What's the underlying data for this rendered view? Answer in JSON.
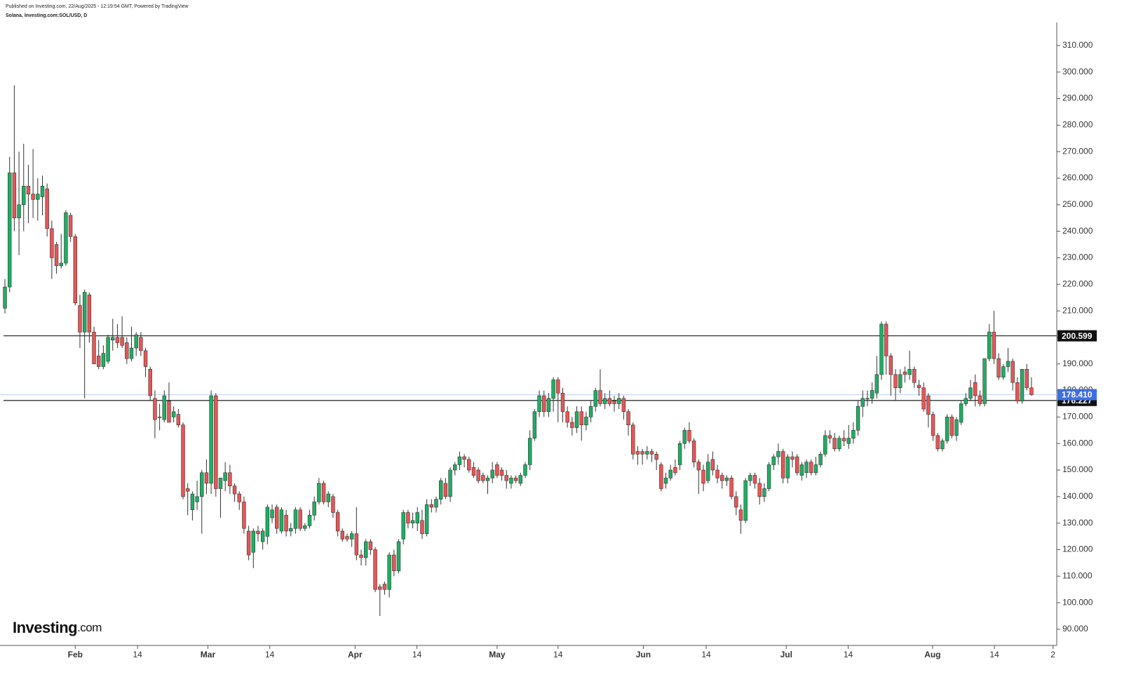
{
  "header": {
    "published": "Published on Investing.com, 22/Aug/2025 - 12:19:54 GMT, Powered by TradingView",
    "symbol": "Solana, Investing.com:SOL/USD, D"
  },
  "logo": {
    "main": "Investing",
    "suffix": ".com"
  },
  "chart_data": {
    "type": "candlestick",
    "up_color": "#1fae63",
    "down_color": "#e85656",
    "xlim": [
      -1.05,
      224.4
    ],
    "ylim": [
      83.9,
      318.7
    ],
    "xticks": [
      {
        "value": 15.0,
        "label": "Feb"
      },
      {
        "value": 28.3,
        "label": "14"
      },
      {
        "value": 43.3,
        "label": "Mar"
      },
      {
        "value": 56.5,
        "label": "14"
      },
      {
        "value": 74.7,
        "label": "Apr"
      },
      {
        "value": 87.9,
        "label": "14"
      },
      {
        "value": 105.0,
        "label": "May"
      },
      {
        "value": 118.0,
        "label": "14"
      },
      {
        "value": 136.2,
        "label": "Jun"
      },
      {
        "value": 149.6,
        "label": "14"
      },
      {
        "value": 166.7,
        "label": "Jul"
      },
      {
        "value": 179.9,
        "label": "14"
      },
      {
        "value": 197.9,
        "label": "Aug"
      },
      {
        "value": 211.1,
        "label": "14"
      },
      {
        "value": 223.6,
        "label": "2"
      }
    ],
    "yticks": [
      {
        "value": 90,
        "label": "90.000"
      },
      {
        "value": 100,
        "label": "100.000"
      },
      {
        "value": 110,
        "label": "110.000"
      },
      {
        "value": 120,
        "label": "120.000"
      },
      {
        "value": 130,
        "label": "130.000"
      },
      {
        "value": 140,
        "label": "140.000"
      },
      {
        "value": 150,
        "label": "150.000"
      },
      {
        "value": 160,
        "label": "160.000"
      },
      {
        "value": 170,
        "label": "170.000"
      },
      {
        "value": 180,
        "label": "180.000"
      },
      {
        "value": 190,
        "label": "190.000"
      },
      {
        "value": 200,
        "label": "200.000"
      },
      {
        "value": 210,
        "label": "210.000"
      },
      {
        "value": 220,
        "label": "220.000"
      },
      {
        "value": 230,
        "label": "230.000"
      },
      {
        "value": 240,
        "label": "240.000"
      },
      {
        "value": 250,
        "label": "250.000"
      },
      {
        "value": 260,
        "label": "260.000"
      },
      {
        "value": 270,
        "label": "270.000"
      },
      {
        "value": 280,
        "label": "280.000"
      },
      {
        "value": 290,
        "label": "290.000"
      },
      {
        "value": 300,
        "label": "300.000"
      },
      {
        "value": 310,
        "label": "310.000"
      }
    ],
    "levels": [
      {
        "value": 200.599,
        "label": "200.599"
      },
      {
        "value": 176.227,
        "label": "176.227"
      }
    ],
    "last": {
      "value": 178.41,
      "label": "178.410",
      "color": "#3d6fe0"
    },
    "ohlc": [
      [
        211,
        222,
        209,
        219
      ],
      [
        219,
        268,
        217,
        262
      ],
      [
        262,
        295,
        240,
        245
      ],
      [
        245,
        270,
        231,
        250
      ],
      [
        250,
        273,
        240,
        257
      ],
      [
        257,
        265,
        243,
        254
      ],
      [
        254,
        271,
        245,
        252
      ],
      [
        252,
        260,
        244,
        254
      ],
      [
        253,
        261,
        246,
        257
      ],
      [
        256,
        258,
        238,
        241
      ],
      [
        241,
        244,
        222,
        230
      ],
      [
        235,
        236,
        224,
        227
      ],
      [
        227,
        239,
        226,
        228
      ],
      [
        228,
        248,
        227,
        247
      ],
      [
        246,
        247,
        236,
        238
      ],
      [
        238,
        239,
        212,
        213
      ],
      [
        212,
        216,
        196,
        202
      ],
      [
        202,
        218,
        177,
        217
      ],
      [
        216,
        217,
        198,
        202
      ],
      [
        202,
        204,
        190,
        190
      ],
      [
        193,
        199,
        188,
        189
      ],
      [
        189,
        197,
        188,
        194
      ],
      [
        191,
        201,
        190,
        200
      ],
      [
        199,
        207,
        195,
        200
      ],
      [
        200,
        205,
        196,
        198
      ],
      [
        200,
        208,
        196,
        197
      ],
      [
        198,
        200,
        190,
        192
      ],
      [
        192,
        204,
        191,
        196
      ],
      [
        196,
        202,
        193,
        201
      ],
      [
        200,
        202,
        193,
        195
      ],
      [
        195,
        196,
        185,
        189
      ],
      [
        188,
        189,
        176,
        178
      ],
      [
        177,
        180,
        162,
        169
      ],
      [
        170,
        175,
        165,
        170
      ],
      [
        169,
        180,
        168,
        178
      ],
      [
        176,
        183,
        168,
        168
      ],
      [
        170,
        174,
        168,
        172
      ],
      [
        171,
        173,
        166,
        167
      ],
      [
        167,
        168,
        139,
        140
      ],
      [
        143,
        145,
        133,
        142
      ],
      [
        135,
        142,
        131,
        141
      ],
      [
        138,
        146,
        135,
        140
      ],
      [
        140,
        150,
        126,
        149
      ],
      [
        149,
        154,
        141,
        145
      ],
      [
        145,
        180,
        141,
        178
      ],
      [
        178,
        179,
        140,
        143
      ],
      [
        143,
        147,
        132,
        147
      ],
      [
        146,
        153,
        142,
        149
      ],
      [
        149,
        152,
        141,
        144
      ],
      [
        144,
        145,
        138,
        141
      ],
      [
        141,
        142,
        135,
        138
      ],
      [
        138,
        140,
        126,
        128
      ],
      [
        127,
        129,
        116,
        118
      ],
      [
        119,
        128,
        113,
        127
      ],
      [
        127,
        129,
        123,
        126
      ],
      [
        123,
        128,
        120,
        127
      ],
      [
        125,
        137,
        122,
        136
      ],
      [
        132,
        137,
        130,
        135
      ],
      [
        136,
        137,
        126,
        128
      ],
      [
        127,
        136,
        126,
        135
      ],
      [
        133,
        135,
        125,
        127
      ],
      [
        127,
        130,
        125,
        128
      ],
      [
        128,
        136,
        126,
        135
      ],
      [
        135,
        136,
        127,
        128
      ],
      [
        128,
        130,
        127,
        129
      ],
      [
        129,
        135,
        128,
        133
      ],
      [
        133,
        140,
        131,
        138
      ],
      [
        138,
        147,
        137,
        145
      ],
      [
        145,
        146,
        137,
        138
      ],
      [
        138,
        142,
        136,
        141
      ],
      [
        140,
        141,
        132,
        134
      ],
      [
        134,
        135,
        125,
        127
      ],
      [
        127,
        128,
        123,
        124
      ],
      [
        125,
        126,
        123,
        124
      ],
      [
        124,
        127,
        121,
        126
      ],
      [
        126,
        136,
        116,
        118
      ],
      [
        118,
        120,
        114,
        117
      ],
      [
        117,
        124,
        114,
        123
      ],
      [
        123,
        124,
        118,
        120
      ],
      [
        120,
        121,
        104,
        105
      ],
      [
        106,
        107,
        95,
        105
      ],
      [
        107,
        108,
        103,
        105
      ],
      [
        105,
        119,
        102,
        118
      ],
      [
        118,
        120,
        110,
        112
      ],
      [
        112,
        124,
        111,
        123
      ],
      [
        124,
        135,
        122,
        134
      ],
      [
        134,
        135,
        128,
        130
      ],
      [
        130,
        134,
        128,
        131
      ],
      [
        130,
        136,
        127,
        134
      ],
      [
        131,
        135,
        124,
        126
      ],
      [
        126,
        139,
        125,
        137
      ],
      [
        137,
        139,
        134,
        136
      ],
      [
        136,
        140,
        134,
        139
      ],
      [
        139,
        147,
        137,
        146
      ],
      [
        145,
        147,
        139,
        140
      ],
      [
        140,
        151,
        138,
        150
      ],
      [
        150,
        153,
        148,
        152
      ],
      [
        152,
        157,
        150,
        155
      ],
      [
        155,
        156,
        151,
        154
      ],
      [
        154,
        155,
        149,
        150
      ],
      [
        151,
        153,
        147,
        148
      ],
      [
        150,
        151,
        145,
        146
      ],
      [
        148,
        149,
        145,
        146
      ],
      [
        146,
        148,
        141,
        147
      ],
      [
        147,
        153,
        145,
        150
      ],
      [
        152,
        153,
        147,
        148
      ],
      [
        150,
        151,
        146,
        148
      ],
      [
        148,
        150,
        143,
        146
      ],
      [
        145,
        148,
        143,
        147
      ],
      [
        147,
        148,
        145,
        146
      ],
      [
        145,
        149,
        144,
        148
      ],
      [
        148,
        153,
        147,
        152
      ],
      [
        152,
        165,
        150,
        162
      ],
      [
        162,
        173,
        161,
        172
      ],
      [
        172,
        180,
        170,
        178
      ],
      [
        178,
        180,
        170,
        172
      ],
      [
        172,
        179,
        170,
        177
      ],
      [
        177,
        185,
        172,
        184
      ],
      [
        184,
        185,
        168,
        179
      ],
      [
        179,
        181,
        168,
        172
      ],
      [
        172,
        174,
        166,
        168
      ],
      [
        168,
        170,
        163,
        166
      ],
      [
        166,
        174,
        164,
        172
      ],
      [
        172,
        174,
        161,
        167
      ],
      [
        167,
        172,
        165,
        170
      ],
      [
        170,
        176,
        168,
        174
      ],
      [
        174,
        181,
        172,
        180
      ],
      [
        180,
        188,
        174,
        175
      ],
      [
        175,
        179,
        173,
        177
      ],
      [
        177,
        180,
        174,
        175
      ],
      [
        176,
        178,
        172,
        175
      ],
      [
        175,
        179,
        173,
        177
      ],
      [
        177,
        178,
        169,
        172
      ],
      [
        172,
        173,
        163,
        167
      ],
      [
        167,
        168,
        154,
        156
      ],
      [
        157,
        159,
        152,
        156
      ],
      [
        157,
        158,
        152,
        156
      ],
      [
        156,
        159,
        154,
        157
      ],
      [
        157,
        158,
        153,
        156
      ],
      [
        156,
        157,
        150,
        154
      ],
      [
        152,
        153,
        142,
        143
      ],
      [
        145,
        149,
        143,
        147
      ],
      [
        147,
        152,
        146,
        150
      ],
      [
        151,
        154,
        148,
        149
      ],
      [
        152,
        161,
        150,
        160
      ],
      [
        160,
        166,
        158,
        165
      ],
      [
        165,
        168,
        160,
        161
      ],
      [
        161,
        162,
        151,
        153
      ],
      [
        153,
        154,
        141,
        150
      ],
      [
        150,
        152,
        142,
        145
      ],
      [
        146,
        156,
        145,
        153
      ],
      [
        154,
        157,
        148,
        150
      ],
      [
        150,
        152,
        145,
        147
      ],
      [
        148,
        149,
        143,
        146
      ],
      [
        146,
        148,
        144,
        147
      ],
      [
        147,
        148,
        139,
        140
      ],
      [
        140,
        142,
        133,
        136
      ],
      [
        135,
        137,
        126,
        131
      ],
      [
        131,
        147,
        130,
        146
      ],
      [
        146,
        149,
        144,
        148
      ],
      [
        148,
        149,
        143,
        145
      ],
      [
        145,
        147,
        137,
        140
      ],
      [
        140,
        145,
        138,
        143
      ],
      [
        143,
        153,
        142,
        152
      ],
      [
        152,
        156,
        150,
        155
      ],
      [
        155,
        160,
        152,
        157
      ],
      [
        157,
        158,
        145,
        147
      ],
      [
        147,
        156,
        145,
        155
      ],
      [
        155,
        157,
        151,
        154
      ],
      [
        155,
        156,
        148,
        149
      ],
      [
        148,
        153,
        146,
        152
      ],
      [
        149,
        154,
        147,
        153
      ],
      [
        153,
        154,
        148,
        149
      ],
      [
        149,
        155,
        148,
        152
      ],
      [
        152,
        157,
        151,
        156
      ],
      [
        156,
        165,
        155,
        163
      ],
      [
        163,
        165,
        160,
        162
      ],
      [
        162,
        164,
        157,
        158
      ],
      [
        158,
        163,
        157,
        162
      ],
      [
        162,
        165,
        159,
        161
      ],
      [
        160,
        167,
        158,
        162
      ],
      [
        162,
        168,
        160,
        165
      ],
      [
        165,
        176,
        163,
        174
      ],
      [
        174,
        180,
        170,
        177
      ],
      [
        177,
        180,
        174,
        177
      ],
      [
        177,
        183,
        175,
        180
      ],
      [
        179,
        193,
        177,
        186
      ],
      [
        186,
        206,
        184,
        205
      ],
      [
        205,
        206,
        186,
        193
      ],
      [
        193,
        194,
        178,
        186
      ],
      [
        186,
        188,
        176,
        181
      ],
      [
        181,
        188,
        179,
        186
      ],
      [
        187,
        189,
        183,
        186
      ],
      [
        186,
        195,
        184,
        188
      ],
      [
        188,
        189,
        181,
        183
      ],
      [
        182,
        184,
        178,
        181
      ],
      [
        181,
        183,
        172,
        173
      ],
      [
        178,
        179,
        166,
        171
      ],
      [
        171,
        172,
        161,
        163
      ],
      [
        163,
        164,
        157,
        158
      ],
      [
        158,
        162,
        157,
        161
      ],
      [
        161,
        171,
        160,
        170
      ],
      [
        170,
        171,
        162,
        163
      ],
      [
        163,
        170,
        161,
        169
      ],
      [
        168,
        176,
        167,
        175
      ],
      [
        175,
        179,
        174,
        177
      ],
      [
        177,
        184,
        176,
        181
      ],
      [
        183,
        186,
        174,
        178
      ],
      [
        178,
        180,
        174,
        175
      ],
      [
        175,
        192,
        174,
        192
      ],
      [
        192,
        205,
        191,
        202
      ],
      [
        202,
        210,
        190,
        192
      ],
      [
        192,
        194,
        184,
        185
      ],
      [
        185,
        190,
        184,
        189
      ],
      [
        189,
        196,
        187,
        191
      ],
      [
        191,
        192,
        180,
        183
      ],
      [
        183,
        185,
        175,
        176
      ],
      [
        176,
        188,
        175,
        188
      ],
      [
        188,
        190,
        180,
        181
      ],
      [
        181,
        185,
        178,
        178.41
      ]
    ]
  }
}
